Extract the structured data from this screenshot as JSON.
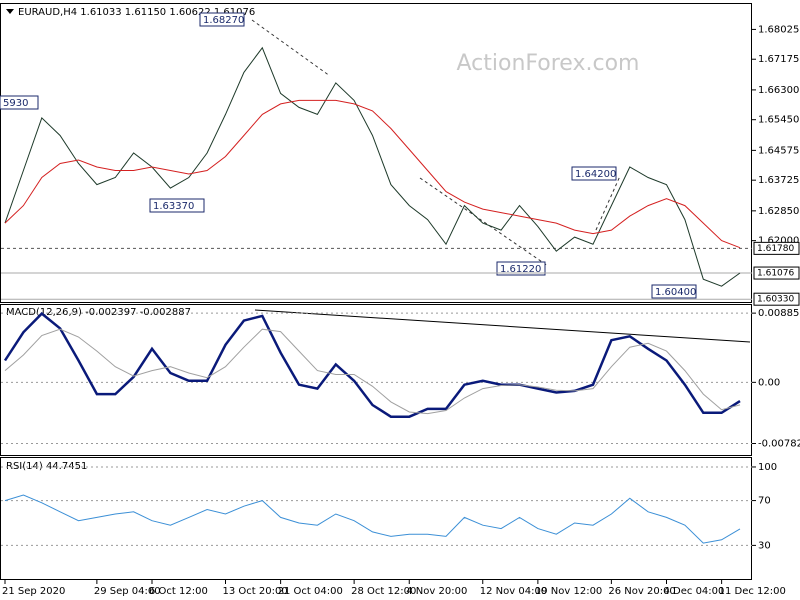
{
  "chart_data": [
    {
      "type": "line",
      "title": "EURAUD,H4 1.61033 1.61150 1.60622 1.61076",
      "watermark": "ActionForex.com",
      "categories": [
        "21 Sep 2020",
        null,
        null,
        null,
        null,
        "29 Sep 04:00",
        null,
        null,
        "6 Oct 12:00",
        null,
        null,
        null,
        "13 Oct 20:00",
        null,
        null,
        "21 Oct 04:00",
        null,
        null,
        null,
        "28 Oct 12:00",
        null,
        null,
        "4 Nov 20:00",
        null,
        null,
        null,
        "12 Nov 04:00",
        null,
        null,
        "19 Nov 12:00",
        null,
        null,
        null,
        "26 Nov 20:00",
        null,
        null,
        "4 Dec 04:00",
        null,
        null,
        "11 Dec 12:00",
        null
      ],
      "series": [
        {
          "color": "#1e3a2a",
          "values": [
            1.625,
            1.64,
            1.655,
            1.65,
            1.642,
            1.636,
            1.638,
            1.645,
            1.641,
            1.635,
            1.638,
            1.645,
            1.656,
            1.668,
            1.675,
            1.662,
            1.658,
            1.656,
            1.665,
            1.66,
            1.65,
            1.636,
            1.63,
            1.626,
            1.619,
            1.63,
            1.625,
            1.623,
            1.63,
            1.624,
            1.617,
            1.621,
            1.619,
            1.63,
            1.641,
            1.638,
            1.636,
            1.626,
            1.609,
            1.607,
            1.61076
          ]
        },
        {
          "color": "#d42020",
          "values": [
            1.625,
            1.63,
            1.638,
            1.642,
            1.643,
            1.641,
            1.64,
            1.64,
            1.641,
            1.64,
            1.639,
            1.64,
            1.644,
            1.65,
            1.656,
            1.659,
            1.66,
            1.66,
            1.66,
            1.659,
            1.657,
            1.652,
            1.646,
            1.64,
            1.634,
            1.631,
            1.629,
            1.628,
            1.627,
            1.626,
            1.625,
            1.623,
            1.622,
            1.623,
            1.627,
            1.63,
            1.632,
            1.63,
            1.625,
            1.62,
            1.618
          ]
        }
      ],
      "annotations": [
        "1.68270",
        "5930",
        "1.63370",
        "1.64200",
        "1.61220",
        "1.60400"
      ],
      "price_lines": [
        {
          "value": 1.6178,
          "label": "1.61780"
        },
        {
          "value": 1.61076,
          "label": "1.61076"
        },
        {
          "value": 1.6033,
          "label": "1.60330"
        }
      ],
      "ylim": [
        1.6025,
        1.6875
      ],
      "yticks": [
        {
          "value": 1.68025,
          "label": "1.68025"
        },
        {
          "value": 1.67175,
          "label": "1.67175"
        },
        {
          "value": 1.663,
          "label": "1.66300"
        },
        {
          "value": 1.6545,
          "label": "1.65450"
        },
        {
          "value": 1.64575,
          "label": "1.64575"
        },
        {
          "value": 1.63725,
          "label": "1.63725"
        },
        {
          "value": 1.6285,
          "label": "1.62850"
        },
        {
          "value": 1.62,
          "label": "1.62000"
        }
      ]
    },
    {
      "type": "line",
      "title": "MACD(12,26,9) -0.002397 -0.002887",
      "series": [
        {
          "color": "#0a1a7a",
          "values": [
            0.0028,
            0.0064,
            0.0088,
            0.0069,
            0.0028,
            -0.0015,
            -0.0015,
            0.0007,
            0.0043,
            0.0012,
            0.0002,
            0.0002,
            0.0048,
            0.0079,
            0.0085,
            0.0038,
            -0.0003,
            -0.0008,
            0.0023,
            0.0002,
            -0.0029,
            -0.0044,
            -0.0044,
            -0.0034,
            -0.0034,
            -0.0003,
            0.0002,
            -0.0003,
            -0.0003,
            -0.0008,
            -0.0013,
            -0.0011,
            -0.0003,
            0.0054,
            0.0059,
            0.0043,
            0.0028,
            -0.0003,
            -0.0039,
            -0.0039,
            -0.002397
          ]
        },
        {
          "color": "#a0a0a0",
          "values": [
            0.0015,
            0.0035,
            0.006,
            0.0068,
            0.0058,
            0.004,
            0.002,
            0.0008,
            0.0015,
            0.002,
            0.0012,
            0.0006,
            0.002,
            0.0045,
            0.0068,
            0.0065,
            0.004,
            0.0015,
            0.001,
            0.001,
            -0.0005,
            -0.0025,
            -0.0038,
            -0.004,
            -0.0036,
            -0.002,
            -0.0008,
            -0.0004,
            -0.0003,
            -0.0006,
            -0.001,
            -0.0011,
            -0.0008,
            0.002,
            0.0045,
            0.005,
            0.004,
            0.0015,
            -0.0015,
            -0.0035,
            -0.002887
          ]
        }
      ],
      "ylim": [
        -0.0093,
        0.0099
      ],
      "yticks": [
        0.008859,
        {
          "value": 0,
          "label": "0.00"
        },
        -0.007826
      ]
    },
    {
      "type": "line",
      "title": "RSI(14) 44.7451",
      "series": [
        {
          "color": "#3b8fd6",
          "values": [
            70,
            75,
            68,
            60,
            52,
            55,
            58,
            60,
            52,
            48,
            55,
            62,
            58,
            65,
            70,
            55,
            50,
            48,
            58,
            52,
            42,
            38,
            40,
            40,
            38,
            55,
            48,
            45,
            55,
            45,
            40,
            50,
            48,
            58,
            72,
            60,
            55,
            48,
            32,
            35,
            44.7451
          ]
        }
      ],
      "ylim": [
        0,
        108
      ],
      "yticks": [
        100,
        70,
        30
      ]
    }
  ]
}
